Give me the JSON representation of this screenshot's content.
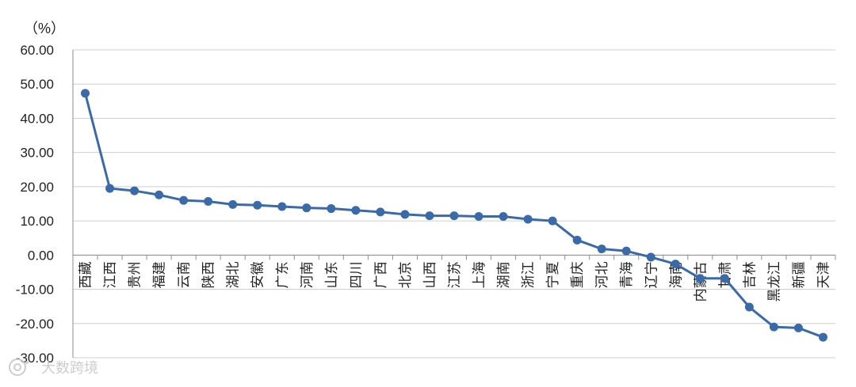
{
  "chart_data": {
    "type": "line",
    "unit_label": "（%）",
    "categories": [
      "西藏",
      "江西",
      "贵州",
      "福建",
      "云南",
      "陕西",
      "湖北",
      "安徽",
      "广东",
      "河南",
      "山东",
      "四川",
      "广西",
      "北京",
      "山西",
      "江苏",
      "上海",
      "湖南",
      "浙江",
      "宁夏",
      "重庆",
      "河北",
      "青海",
      "辽宁",
      "海南",
      "内蒙古",
      "甘肃",
      "吉林",
      "黑龙江",
      "新疆",
      "天津"
    ],
    "values": [
      47.3,
      19.5,
      18.8,
      17.6,
      16.0,
      15.7,
      14.8,
      14.6,
      14.2,
      13.8,
      13.6,
      13.1,
      12.6,
      11.9,
      11.5,
      11.5,
      11.3,
      11.3,
      10.5,
      10.0,
      4.4,
      1.8,
      1.2,
      -0.6,
      -2.6,
      -6.8,
      -6.8,
      -15.2,
      -21.0,
      -21.3,
      -24.0
    ],
    "yticks": [
      "60.00",
      "50.00",
      "40.00",
      "30.00",
      "20.00",
      "10.00",
      "0.00",
      "-10.00",
      "-20.00",
      "-30.00"
    ],
    "ylim": [
      -30,
      60
    ],
    "grid": true,
    "line_color": "#3b6aa8",
    "marker_color": "#3b6aa8"
  },
  "watermark": {
    "icon": "camera-icon",
    "text": "大数跨境"
  }
}
